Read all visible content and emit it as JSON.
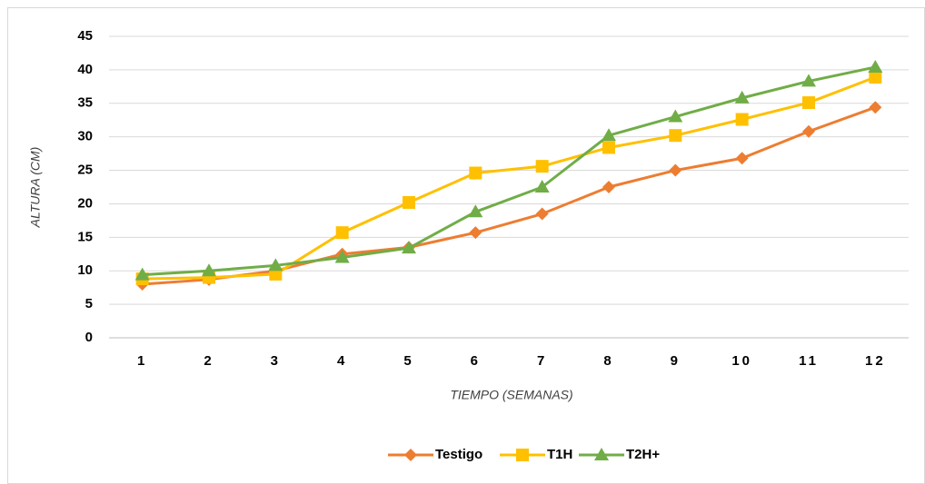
{
  "chart_data": {
    "type": "line",
    "x_label": "TIEMPO (SEMANAS)",
    "y_label": "ALTURA (CM)",
    "categories": [
      "1",
      "2",
      "3",
      "4",
      "5",
      "6",
      "7",
      "8",
      "9",
      "10",
      "11",
      "12"
    ],
    "series": [
      {
        "name": "Testigo",
        "color": "#ed7d31",
        "marker": "diamond",
        "values": [
          8.0,
          8.7,
          10.0,
          12.5,
          13.5,
          15.7,
          18.5,
          22.5,
          25.0,
          26.8,
          30.8,
          34.4
        ]
      },
      {
        "name": "T1H",
        "color": "#ffc000",
        "marker": "square",
        "values": [
          8.8,
          9.0,
          9.5,
          15.7,
          20.2,
          24.6,
          25.6,
          28.4,
          30.2,
          32.6,
          35.1,
          38.9
        ]
      },
      {
        "name": "T2H+",
        "color": "#70ad47",
        "marker": "triangle",
        "values": [
          9.4,
          10.0,
          10.8,
          12.0,
          13.4,
          18.8,
          22.5,
          30.2,
          33.0,
          35.8,
          38.3,
          40.4
        ]
      }
    ],
    "ylim": [
      0,
      45
    ],
    "yticks": [
      0,
      5,
      10,
      15,
      20,
      25,
      30,
      35,
      40,
      45
    ],
    "grid": true,
    "legend": "bottom"
  }
}
